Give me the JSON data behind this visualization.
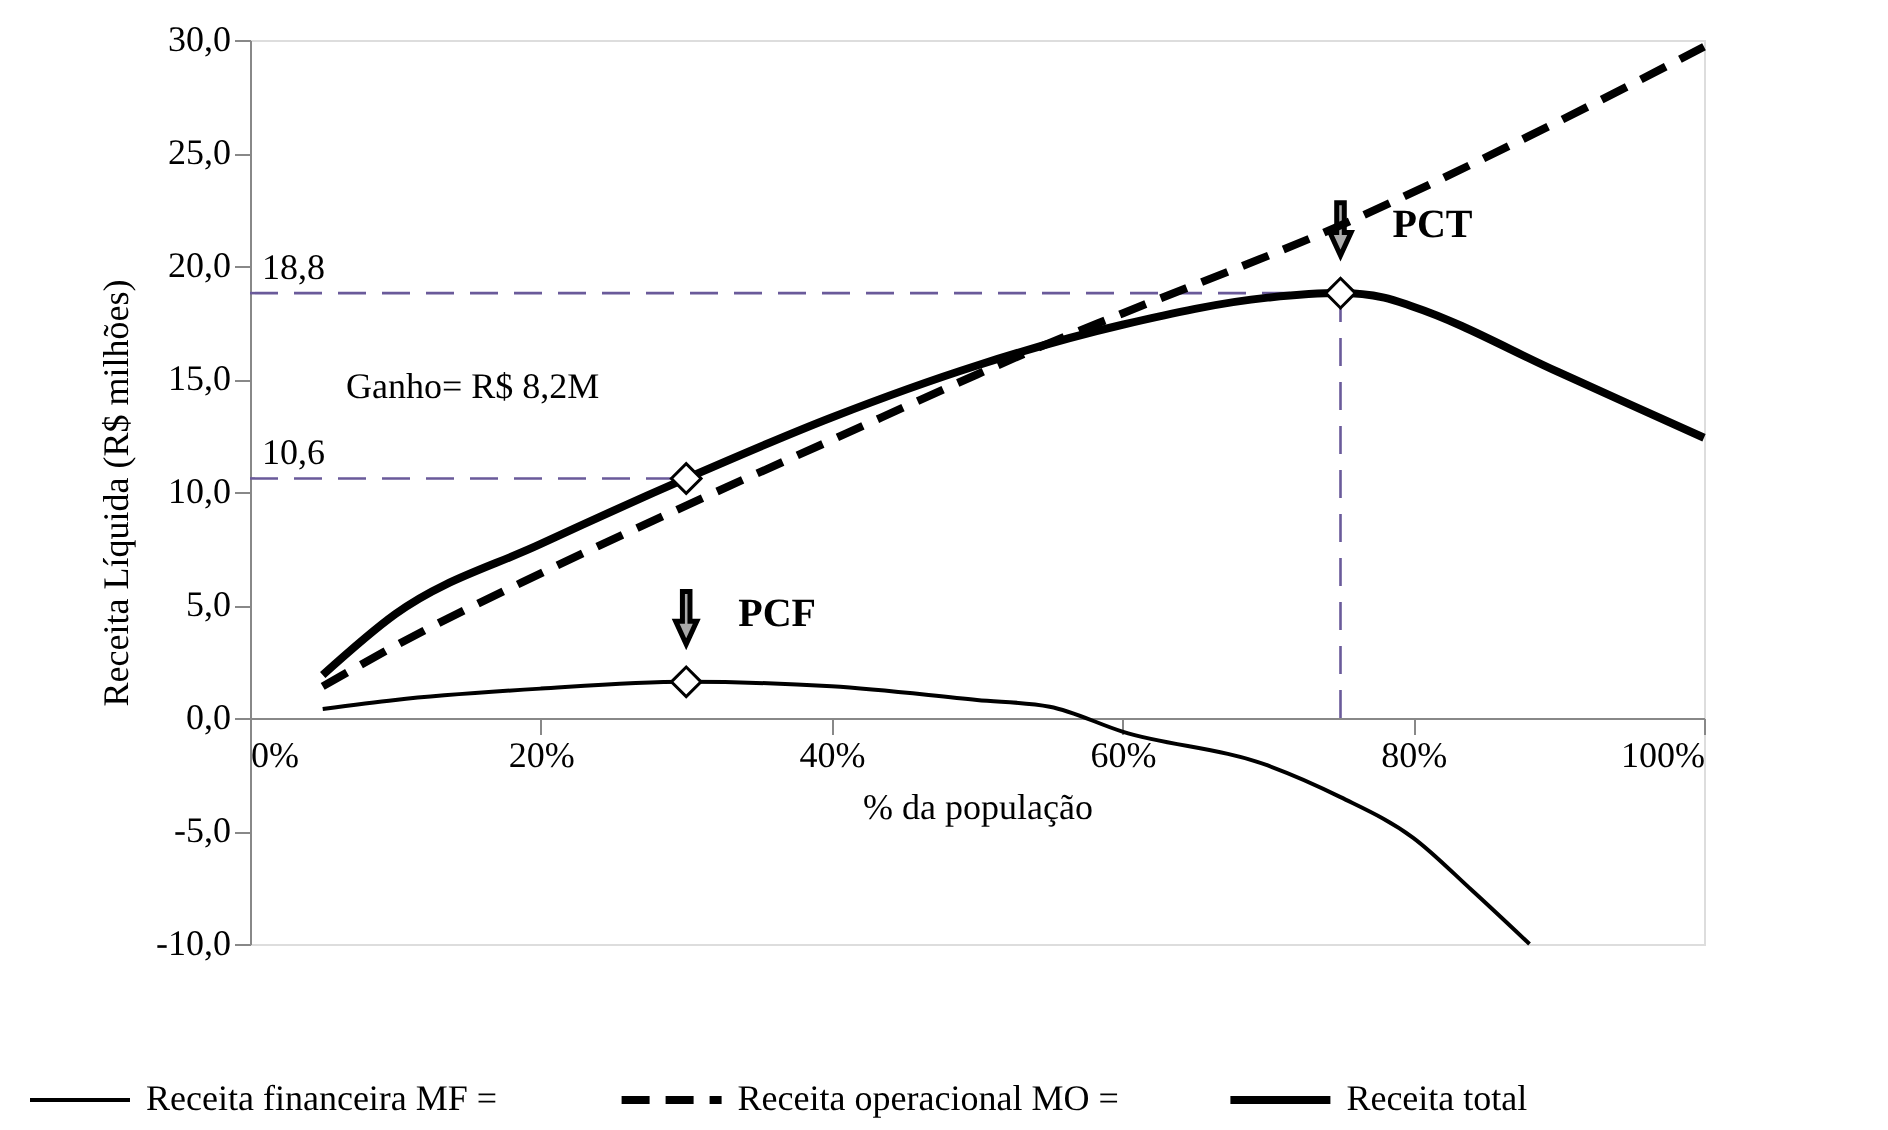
{
  "chart_data": {
    "type": "line",
    "xlabel": "% da população",
    "ylabel": "Receita Líquida (R$ milhões)",
    "xlim": [
      0,
      100
    ],
    "ylim": [
      -10,
      30
    ],
    "xticks": [
      {
        "value": 0,
        "label": "0%"
      },
      {
        "value": 20,
        "label": "20%"
      },
      {
        "value": 40,
        "label": "40%"
      },
      {
        "value": 60,
        "label": "60%"
      },
      {
        "value": 80,
        "label": "80%"
      },
      {
        "value": 100,
        "label": "100%"
      }
    ],
    "yticks": [
      {
        "value": -10,
        "label": "-10,0"
      },
      {
        "value": -5,
        "label": "-5,0"
      },
      {
        "value": 0,
        "label": "0,0"
      },
      {
        "value": 5,
        "label": "5,0"
      },
      {
        "value": 10,
        "label": "10,0"
      },
      {
        "value": 15,
        "label": "15,0"
      },
      {
        "value": 20,
        "label": "20,0"
      },
      {
        "value": 25,
        "label": "25,0"
      },
      {
        "value": 30,
        "label": "30,0"
      }
    ],
    "grid": false,
    "legend": "bottom",
    "series": [
      {
        "name": "Receita financeira MF =",
        "line_style": "solid",
        "color": "#000000",
        "x": [
          5,
          10,
          20,
          30,
          40,
          50,
          55,
          60,
          70,
          75,
          80,
          84,
          88
        ],
        "values": [
          0.4,
          0.8,
          1.3,
          1.6,
          1.4,
          0.8,
          0.5,
          -0.6,
          -2.1,
          -3.5,
          -5.3,
          -7.6,
          -10
        ]
      },
      {
        "name": "Receita operacional MO =",
        "line_style": "dashed",
        "color": "#000000",
        "x": [
          5,
          10,
          20,
          30,
          40,
          50,
          55,
          60,
          75,
          90,
          100
        ],
        "values": [
          1.4,
          3.2,
          6.4,
          9.4,
          12.3,
          15.2,
          16.6,
          17.9,
          21.8,
          26.4,
          29.7
        ]
      },
      {
        "name": "Receita total",
        "line_style": "solid",
        "color": "#000000",
        "x": [
          5,
          10,
          20,
          30,
          40,
          50,
          60,
          70,
          75,
          78,
          80,
          90,
          100
        ],
        "values": [
          1.9,
          4.6,
          7.7,
          10.6,
          13.3,
          15.6,
          17.4,
          18.6,
          18.8,
          18.6,
          18.2,
          15.3,
          12.4
        ]
      },
      {
        "type": "scatter",
        "marker": "diamond",
        "color": "#ffffff",
        "x": [
          30,
          75,
          30
        ],
        "values": [
          10.6,
          18.8,
          1.6
        ]
      }
    ],
    "ref_lines": [
      {
        "axis": "y",
        "value": 18.8,
        "label": "18,8",
        "color": "#6a5a9a",
        "line_style": "dashed"
      },
      {
        "axis": "y",
        "value": 10.6,
        "label": "10,6",
        "color": "#6a5a9a",
        "line_style": "dashed"
      },
      {
        "axis": "x",
        "value": 75,
        "label": null,
        "color": "#6a5a9a",
        "line_style": "dashed"
      }
    ],
    "annotations": [
      "Ganho= R$ 8,2M",
      {
        "text": "PCF",
        "x": 30,
        "y": 1.6
      },
      {
        "text": "PCT",
        "x": 75,
        "y": 18.8
      }
    ]
  }
}
